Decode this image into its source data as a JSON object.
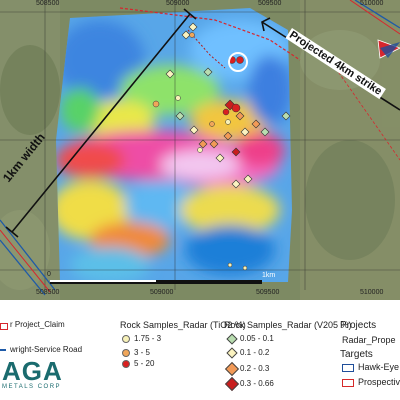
{
  "map": {
    "coords_top": [
      "508500",
      "509000",
      "509500",
      "510000"
    ],
    "coords_bottom": [
      "508500",
      "509000",
      "509500",
      "510000"
    ],
    "width_label": "1km width",
    "strike_label": "Projected 4km strike",
    "scale_label": "1km",
    "scale_zero": "0"
  },
  "legend": {
    "project_claim": "r Project_Claim",
    "service_road": "wright-Service Road",
    "logo_text": "AGA",
    "logo_sub": "METALS CORP",
    "tio2": {
      "title": "Rock Samples_Radar (TiO2 %)",
      "items": [
        {
          "label": "1.75 - 3",
          "color": "#f7f1b8"
        },
        {
          "label": "3 - 5",
          "color": "#f0a65a"
        },
        {
          "label": "5 - 20",
          "color": "#d92020"
        }
      ]
    },
    "v205": {
      "title": "Rock Samples_Radar (V205 %)",
      "items": [
        {
          "label": "0.05 - 0.1",
          "color": "#b9ddb0"
        },
        {
          "label": "0.1 - 0.2",
          "color": "#fbf3c0"
        },
        {
          "label": "0.2 - 0.3",
          "color": "#f29a57"
        },
        {
          "label": "0.3 - 0.66",
          "color": "#c81e1e"
        }
      ]
    },
    "projects_title": "Projects",
    "projects_item": "Radar_Prope",
    "targets_title": "Targets",
    "targets": [
      {
        "label": "Hawk-Eye",
        "color": "#1f4e9a"
      },
      {
        "label": "Prospectiv",
        "color": "#d62a2a"
      }
    ]
  },
  "colors": {
    "claim_line": "#d7262e",
    "road_line": "#1e5aa8",
    "logo": "#1a6b6e"
  }
}
